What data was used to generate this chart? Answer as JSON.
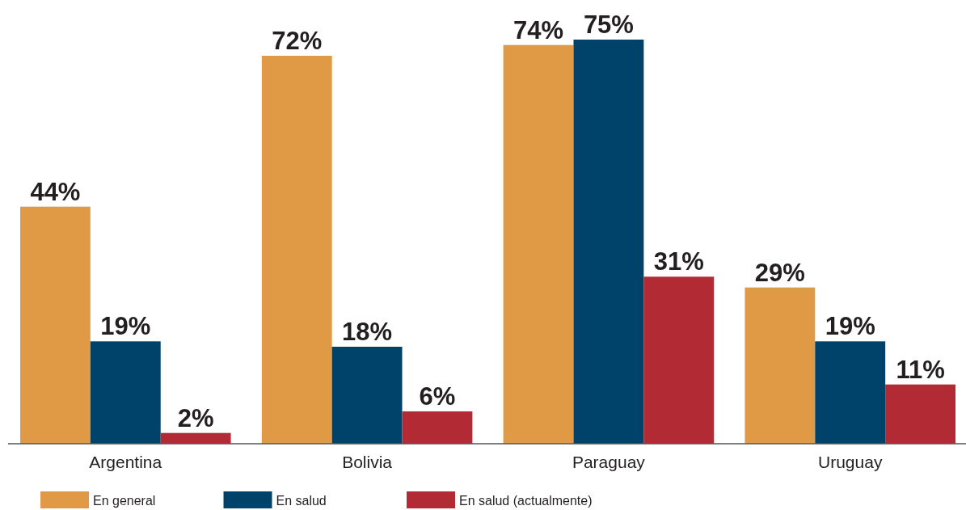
{
  "chart_data": {
    "type": "bar",
    "categories": [
      "Argentina",
      "Bolivia",
      "Paraguay",
      "Uruguay"
    ],
    "series": [
      {
        "name": "En general",
        "color": "#e09a45",
        "values": [
          44,
          72,
          74,
          29
        ],
        "value_labels": [
          "44%",
          "72%",
          "74%",
          "29%"
        ]
      },
      {
        "name": "En salud",
        "color": "#00436a",
        "values": [
          19,
          18,
          75,
          19
        ],
        "value_labels": [
          "19%",
          "18%",
          "75%",
          "19%"
        ]
      },
      {
        "name": "En salud (actualmente)",
        "color": "#b22a33",
        "values": [
          2,
          6,
          31,
          11
        ],
        "value_labels": [
          "2%",
          "6%",
          "31%",
          "11%"
        ]
      }
    ],
    "legend": "bottom",
    "tick_labels": "x"
  }
}
